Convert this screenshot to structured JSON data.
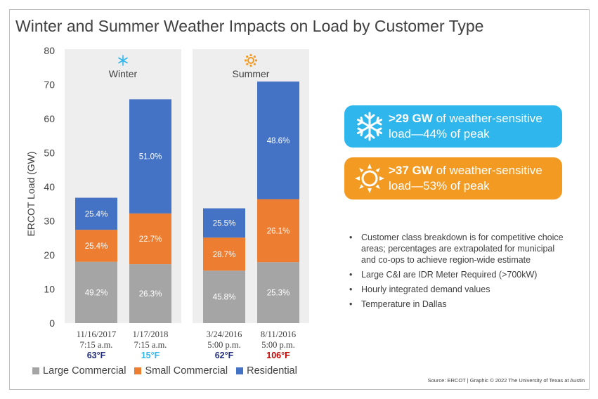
{
  "page": {
    "title": "Winter and Summer Weather Impacts on Load by Customer Type"
  },
  "callouts": [
    {
      "bold": ">29 GW",
      "text": " of weather-sensitive load—44% of peak",
      "icon": "snowflake-icon"
    },
    {
      "bold": ">37 GW",
      "text": " of weather-sensitive load—53% of peak",
      "icon": "sun-icon"
    }
  ],
  "notes": [
    "Customer class breakdown is for competitive choice areas; percentages are extrapolated for municipal and co-ops to achieve region-wide estimate",
    "Large C&I are IDR Meter Required (>700kW)",
    "Hourly integrated demand values",
    "Temperature in Dallas"
  ],
  "source": "Source: ERCOT | Graphic © 2022 The University of Texas at Austin",
  "colors": {
    "large_commercial": "#a5a5a5",
    "small_commercial": "#ed7d31",
    "residential": "#4472c4",
    "winter_accent": "#2fb6ec",
    "summer_accent": "#f39a22",
    "cold_temp": "#2fb6ec",
    "hot_temp": "#c00000",
    "mild_temp": "#1f2a7a"
  },
  "chart_data": {
    "type": "bar",
    "stacked": true,
    "ylabel": "ERCOT Load (GW)",
    "ylim": [
      0,
      80
    ],
    "yticks": [
      0,
      10,
      20,
      30,
      40,
      50,
      60,
      70,
      80
    ],
    "grid": false,
    "legend_position": "bottom-left",
    "groups": [
      {
        "label": "Winter",
        "icon": "snowflake-icon",
        "bars": [
          0,
          1
        ]
      },
      {
        "label": "Summer",
        "icon": "sun-icon",
        "bars": [
          2,
          3
        ]
      }
    ],
    "categories": [
      {
        "date": "11/16/2017",
        "time": "7:15 a.m.",
        "temp": "63°F",
        "temp_color": "mild"
      },
      {
        "date": "1/17/2018",
        "time": "7:15 a.m.",
        "temp": "15°F",
        "temp_color": "cold"
      },
      {
        "date": "3/24/2016",
        "time": "5:00 p.m.",
        "temp": "62°F",
        "temp_color": "mild"
      },
      {
        "date": "8/11/2016",
        "time": "5:00 p.m.",
        "temp": "106°F",
        "temp_color": "hot"
      }
    ],
    "series": [
      {
        "name": "Large Commercial",
        "color_key": "large_commercial",
        "values": [
          18.0,
          17.3,
          15.4,
          17.9
        ],
        "labels": [
          "49.2%",
          "26.3%",
          "45.8%",
          "25.3%"
        ]
      },
      {
        "name": "Small Commercial",
        "color_key": "small_commercial",
        "values": [
          9.4,
          14.9,
          9.7,
          18.5
        ],
        "labels": [
          "25.4%",
          "22.7%",
          "28.7%",
          "26.1%"
        ]
      },
      {
        "name": "Residential",
        "color_key": "residential",
        "values": [
          9.4,
          33.5,
          8.6,
          34.5
        ],
        "labels": [
          "25.4%",
          "51.0%",
          "25.5%",
          "48.6%"
        ]
      }
    ]
  }
}
